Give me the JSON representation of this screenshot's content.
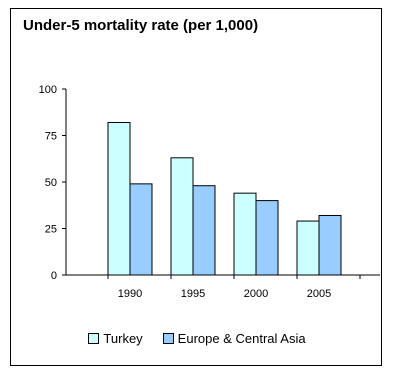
{
  "chart_data": {
    "type": "bar",
    "title": "Under-5 mortality rate (per 1,000)",
    "categories": [
      "1990",
      "1995",
      "2000",
      "2005"
    ],
    "series": [
      {
        "name": "Turkey",
        "values": [
          82,
          63,
          44,
          29
        ],
        "color": "#CCFFFF"
      },
      {
        "name": "Europe & Central Asia",
        "values": [
          49,
          48,
          40,
          32
        ],
        "color": "#99CCFF"
      }
    ],
    "yticks": [
      "0",
      "25",
      "50",
      "75",
      "100"
    ],
    "ylim": [
      0,
      100
    ],
    "xlabel": "",
    "ylabel": "",
    "grid": false,
    "legend_position": "bottom"
  }
}
